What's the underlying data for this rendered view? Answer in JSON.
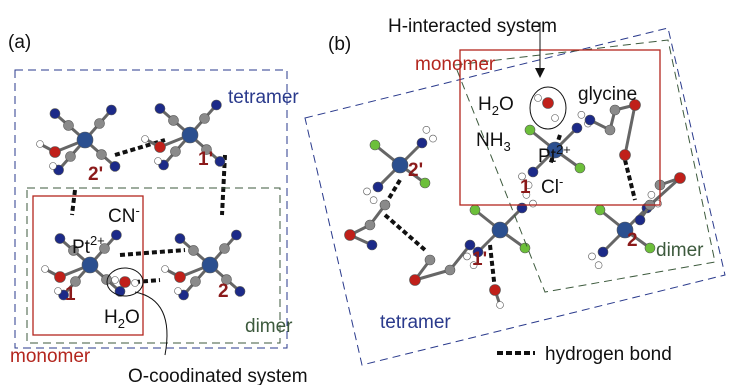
{
  "panel_a": {
    "label": "(a)",
    "tetramer": "tetramer",
    "dimer": "dimer",
    "monomer": "monomer",
    "site_2p": "2'",
    "site_1p": "1'",
    "site_1": "1",
    "site_2": "2",
    "cn": {
      "base": "CN",
      "sup": "-"
    },
    "pt": {
      "base": "Pt",
      "sup": "2+"
    },
    "water": {
      "base": "H",
      "sub": "2",
      "tail": "O"
    },
    "callout": "O-coodinated system"
  },
  "panel_b": {
    "label": "(b)",
    "callout": "H-interacted system",
    "monomer": "monomer",
    "water": {
      "base": "H",
      "sub": "2",
      "tail": "O"
    },
    "glycine": "glycine",
    "nh3": {
      "base": "NH",
      "sub": "3"
    },
    "pt": {
      "base": "Pt",
      "sup": "2+"
    },
    "site_1": "1",
    "cl": {
      "base": "Cl",
      "sup": "-"
    },
    "site_2p": "2'",
    "site_2": "2",
    "dimer": "dimer",
    "site_1p": "1'",
    "tetramer": "tetramer"
  },
  "legend": {
    "hydrogen_bond": "hydrogen bond"
  }
}
